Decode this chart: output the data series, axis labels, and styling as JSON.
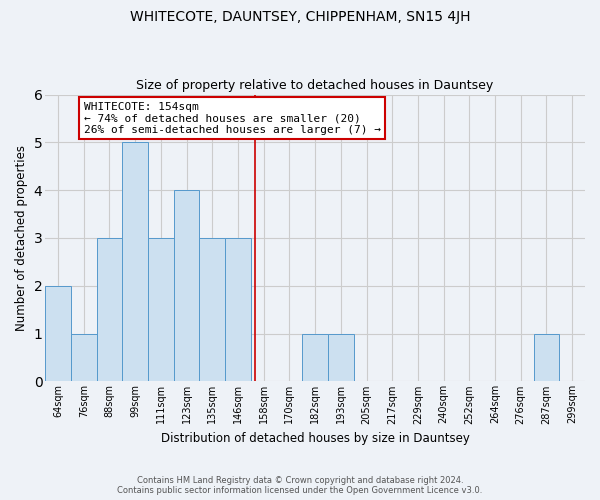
{
  "title": "WHITECOTE, DAUNTSEY, CHIPPENHAM, SN15 4JH",
  "subtitle": "Size of property relative to detached houses in Dauntsey",
  "xlabel": "Distribution of detached houses by size in Dauntsey",
  "ylabel": "Number of detached properties",
  "bin_labels": [
    "64sqm",
    "76sqm",
    "88sqm",
    "99sqm",
    "111sqm",
    "123sqm",
    "135sqm",
    "146sqm",
    "158sqm",
    "170sqm",
    "182sqm",
    "193sqm",
    "205sqm",
    "217sqm",
    "229sqm",
    "240sqm",
    "252sqm",
    "264sqm",
    "276sqm",
    "287sqm",
    "299sqm"
  ],
  "bar_heights": [
    2,
    1,
    3,
    5,
    3,
    4,
    3,
    3,
    0,
    0,
    1,
    1,
    0,
    0,
    0,
    0,
    0,
    0,
    0,
    1,
    0
  ],
  "bar_color": "#cce0f0",
  "bar_edge_color": "#5599cc",
  "grid_color": "#cccccc",
  "vline_color": "#cc0000",
  "vline_x": 7.667,
  "annotation_title": "WHITECOTE: 154sqm",
  "annotation_line1": "← 74% of detached houses are smaller (20)",
  "annotation_line2": "26% of semi-detached houses are larger (7) →",
  "annotation_box_color": "#ffffff",
  "annotation_box_edge_color": "#cc0000",
  "ylim": [
    0,
    6
  ],
  "yticks": [
    0,
    1,
    2,
    3,
    4,
    5,
    6
  ],
  "background_color": "#eef2f7",
  "footer_line1": "Contains HM Land Registry data © Crown copyright and database right 2024.",
  "footer_line2": "Contains public sector information licensed under the Open Government Licence v3.0."
}
